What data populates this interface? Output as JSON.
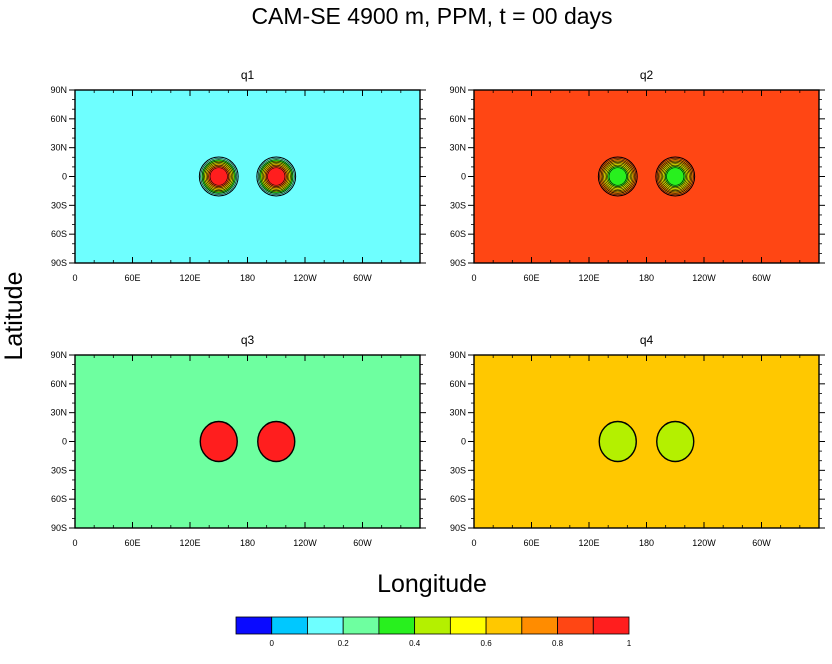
{
  "chart_data": {
    "type": "heatmap",
    "title": "CAM-SE 4900 m, PPM, t = 00 days",
    "xlabel": "Longitude",
    "ylabel": "Latitude",
    "x_ticks": [
      "0",
      "60E",
      "120E",
      "180",
      "120W",
      "60W"
    ],
    "x_tick_values": [
      0,
      60,
      120,
      180,
      240,
      300
    ],
    "y_ticks": [
      "90N",
      "60N",
      "30N",
      "0",
      "30S",
      "60S",
      "90S"
    ],
    "y_tick_values": [
      90,
      60,
      30,
      0,
      -30,
      -60,
      -90
    ],
    "xlim": [
      0,
      360
    ],
    "ylim": [
      -90,
      90
    ],
    "colorbar": {
      "colors": [
        "#0a0aff",
        "#00c8ff",
        "#6effff",
        "#6effa0",
        "#28f01e",
        "#b4f000",
        "#ffff00",
        "#ffc800",
        "#ff8c00",
        "#ff4614",
        "#ff1e1e"
      ],
      "tick_labels": [
        "0",
        "0.2",
        "0.4",
        "0.6",
        "0.8",
        "1"
      ],
      "tick_values": [
        0,
        0.2,
        0.4,
        0.6,
        0.8,
        1.0
      ],
      "level_step": 0.1,
      "level_min": -0.1
    },
    "panels": [
      {
        "name": "q1",
        "background": 0.15,
        "blob": 0.95,
        "blob_kind": "gaussian",
        "blob_centers": [
          {
            "lon": 150,
            "lat": 0
          },
          {
            "lon": 210,
            "lat": 0
          }
        ]
      },
      {
        "name": "q2",
        "background": 0.85,
        "blob": 0.3,
        "blob_kind": "gaussian",
        "blob_centers": [
          {
            "lon": 150,
            "lat": 0
          },
          {
            "lon": 210,
            "lat": 0
          }
        ]
      },
      {
        "name": "q3",
        "background": 0.25,
        "blob": 0.95,
        "blob_kind": "cylinder",
        "blob_centers": [
          {
            "lon": 150,
            "lat": 0
          },
          {
            "lon": 210,
            "lat": 0
          }
        ]
      },
      {
        "name": "q4",
        "background": 0.65,
        "blob": 0.45,
        "blob_kind": "cylinder",
        "blob_centers": [
          {
            "lon": 150,
            "lat": 0
          },
          {
            "lon": 210,
            "lat": 0
          }
        ]
      }
    ]
  }
}
